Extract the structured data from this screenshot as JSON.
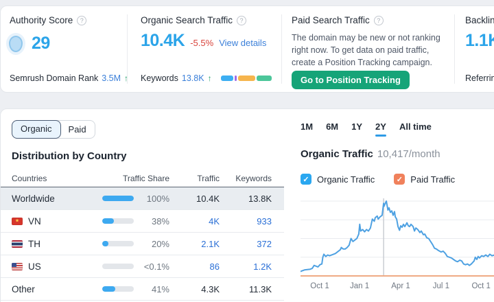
{
  "icons": {
    "help": "?",
    "check": "✓",
    "up_arrow": "↑"
  },
  "colors": {
    "metric_blue": "#2ba4e9",
    "link_blue": "#3a7fd9",
    "table_link_blue": "#2a6fd6",
    "delta_red": "#d8443c",
    "arrow_green": "#23a06b",
    "button_green": "#16a478",
    "bar_blue": "#3da9f0",
    "tab_active_bg": "#e9f4fd",
    "range_underline": "#2e9be6",
    "checkbox_blue": "#2aa7f0",
    "checkbox_orange": "#f0815c"
  },
  "cards": {
    "authority": {
      "title": "Authority Score",
      "score": "29",
      "footer_label": "Semrush Domain Rank",
      "footer_value": "3.5M"
    },
    "organic": {
      "title": "Organic Search Traffic",
      "value": "10.4K",
      "delta": "-5.5%",
      "details_link": "View details",
      "footer_label": "Keywords",
      "footer_value": "13.8K",
      "keyword_segments": [
        {
          "color": "#3daef2",
          "pct": 27
        },
        {
          "color": "#a06ae8",
          "pct": 5
        },
        {
          "color": "#f6b54d",
          "pct": 37
        },
        {
          "color": "#4cc69a",
          "pct": 31
        }
      ]
    },
    "paid": {
      "title": "Paid Search Traffic",
      "description": "The domain may be new or not ranking right now. To get data on paid traffic, create a Position Tracking campaign.",
      "button": "Go to Position Tracking"
    },
    "backlinks": {
      "title": "Backlinks",
      "value": "1.1K",
      "footer_label": "Referring"
    }
  },
  "tabs": {
    "organic": "Organic",
    "paid": "Paid"
  },
  "country_section": {
    "heading": "Distribution by Country",
    "columns": [
      "Countries",
      "Traffic Share",
      "Traffic",
      "Keywords"
    ],
    "rows": [
      {
        "name": "Worldwide",
        "share": "100%",
        "share_fill": 100,
        "traffic": "10.4K",
        "keywords": "13.8K"
      },
      {
        "name": "VN",
        "share": "38%",
        "share_fill": 38,
        "traffic": "4K",
        "keywords": "933"
      },
      {
        "name": "TH",
        "share": "20%",
        "share_fill": 20,
        "traffic": "2.1K",
        "keywords": "372"
      },
      {
        "name": "US",
        "share": "<0.1%",
        "share_fill": 0,
        "traffic": "86",
        "keywords": "1.2K"
      },
      {
        "name": "Other",
        "share": "41%",
        "share_fill": 41,
        "traffic": "4.3K",
        "keywords": "11.3K"
      }
    ]
  },
  "traffic_section": {
    "ranges": [
      "1M",
      "6M",
      "1Y",
      "2Y",
      "All time"
    ],
    "active_range": "2Y",
    "heading": "Organic Traffic",
    "heading_value": "10,417/month",
    "legend": [
      {
        "label": "Organic Traffic",
        "color": "#2aa7f0",
        "checked": true
      },
      {
        "label": "Paid Traffic",
        "color": "#f0815c",
        "checked": true
      }
    ]
  },
  "chart_data": {
    "type": "line",
    "title": "Organic Traffic",
    "subtitle": "10,417/month",
    "grid": true,
    "legend_position": "top",
    "ylim": [
      0,
      100
    ],
    "y_axis_labeled": false,
    "marker_x": 42.8,
    "x_ticks": [
      {
        "label": "Oct 1",
        "pos": 9.9
      },
      {
        "label": "Jan 1",
        "pos": 30.4
      },
      {
        "label": "Apr 1",
        "pos": 51.6
      },
      {
        "label": "Jul 1",
        "pos": 72.4
      },
      {
        "label": "Oct 1",
        "pos": 93
      }
    ],
    "series": [
      {
        "name": "Organic Traffic",
        "color": "#4ea1e2",
        "points": [
          [
            0,
            6
          ],
          [
            2,
            8
          ],
          [
            5,
            9
          ],
          [
            6,
            10
          ],
          [
            7,
            14
          ],
          [
            9,
            12
          ],
          [
            10,
            15
          ],
          [
            11,
            16
          ],
          [
            11.5,
            25
          ],
          [
            12,
            29
          ],
          [
            13,
            26
          ],
          [
            14,
            28
          ],
          [
            15,
            27
          ],
          [
            17,
            29
          ],
          [
            18,
            30
          ],
          [
            19,
            32
          ],
          [
            20.5,
            35
          ],
          [
            21,
            38
          ],
          [
            22,
            36
          ],
          [
            23,
            36
          ],
          [
            24,
            38
          ],
          [
            25,
            41
          ],
          [
            26,
            50
          ],
          [
            27,
            46
          ],
          [
            28,
            48
          ],
          [
            29,
            50
          ],
          [
            30,
            56
          ],
          [
            30.5,
            69
          ],
          [
            31,
            60
          ],
          [
            32,
            62
          ],
          [
            33,
            59
          ],
          [
            34,
            62
          ],
          [
            35,
            60
          ],
          [
            36,
            64
          ],
          [
            37,
            76
          ],
          [
            38,
            73
          ],
          [
            38.5,
            78
          ],
          [
            39.5,
            80
          ],
          [
            40,
            76
          ],
          [
            41,
            79
          ],
          [
            42,
            81
          ],
          [
            42.8,
            97
          ],
          [
            43,
            93
          ],
          [
            43.8,
            98
          ],
          [
            44.2,
            100
          ],
          [
            45,
            88
          ],
          [
            45.6,
            91
          ],
          [
            46.3,
            85
          ],
          [
            47,
            87
          ],
          [
            47.7,
            81
          ],
          [
            48.4,
            86
          ],
          [
            48.8,
            79
          ],
          [
            49.5,
            76
          ],
          [
            50.2,
            66
          ],
          [
            51,
            61
          ],
          [
            51.6,
            67
          ],
          [
            52.3,
            65
          ],
          [
            53,
            69
          ],
          [
            53.7,
            66
          ],
          [
            54.8,
            71
          ],
          [
            55.5,
            67
          ],
          [
            56.2,
            66
          ],
          [
            56.9,
            69
          ],
          [
            58,
            66
          ],
          [
            58.7,
            60
          ],
          [
            59.4,
            64
          ],
          [
            60.4,
            62
          ],
          [
            61.5,
            58
          ],
          [
            62.2,
            60
          ],
          [
            63.3,
            55
          ],
          [
            64,
            56
          ],
          [
            65,
            51
          ],
          [
            66,
            50
          ],
          [
            67,
            46
          ],
          [
            68,
            42
          ],
          [
            69,
            37
          ],
          [
            70,
            36
          ],
          [
            71,
            34
          ],
          [
            72.4,
            32
          ],
          [
            73.5,
            33
          ],
          [
            74.6,
            30
          ],
          [
            75.6,
            26
          ],
          [
            76.7,
            25
          ],
          [
            77.7,
            24
          ],
          [
            78.8,
            22
          ],
          [
            79.9,
            20
          ],
          [
            80.9,
            19
          ],
          [
            82,
            21
          ],
          [
            83,
            20
          ],
          [
            84,
            16
          ],
          [
            85,
            15
          ],
          [
            86,
            16
          ],
          [
            87,
            14
          ],
          [
            88,
            16
          ],
          [
            89.4,
            20
          ],
          [
            90,
            25
          ],
          [
            90.8,
            22
          ],
          [
            91.5,
            26
          ],
          [
            92.2,
            24
          ],
          [
            93.3,
            27
          ],
          [
            94.3,
            26
          ],
          [
            95.4,
            28
          ],
          [
            96.5,
            26
          ],
          [
            97.5,
            29
          ],
          [
            98.6,
            27
          ],
          [
            100,
            28
          ]
        ]
      },
      {
        "name": "Paid Traffic",
        "color": "#efaa84",
        "points": [
          [
            0,
            0
          ],
          [
            100,
            0
          ]
        ]
      }
    ]
  }
}
